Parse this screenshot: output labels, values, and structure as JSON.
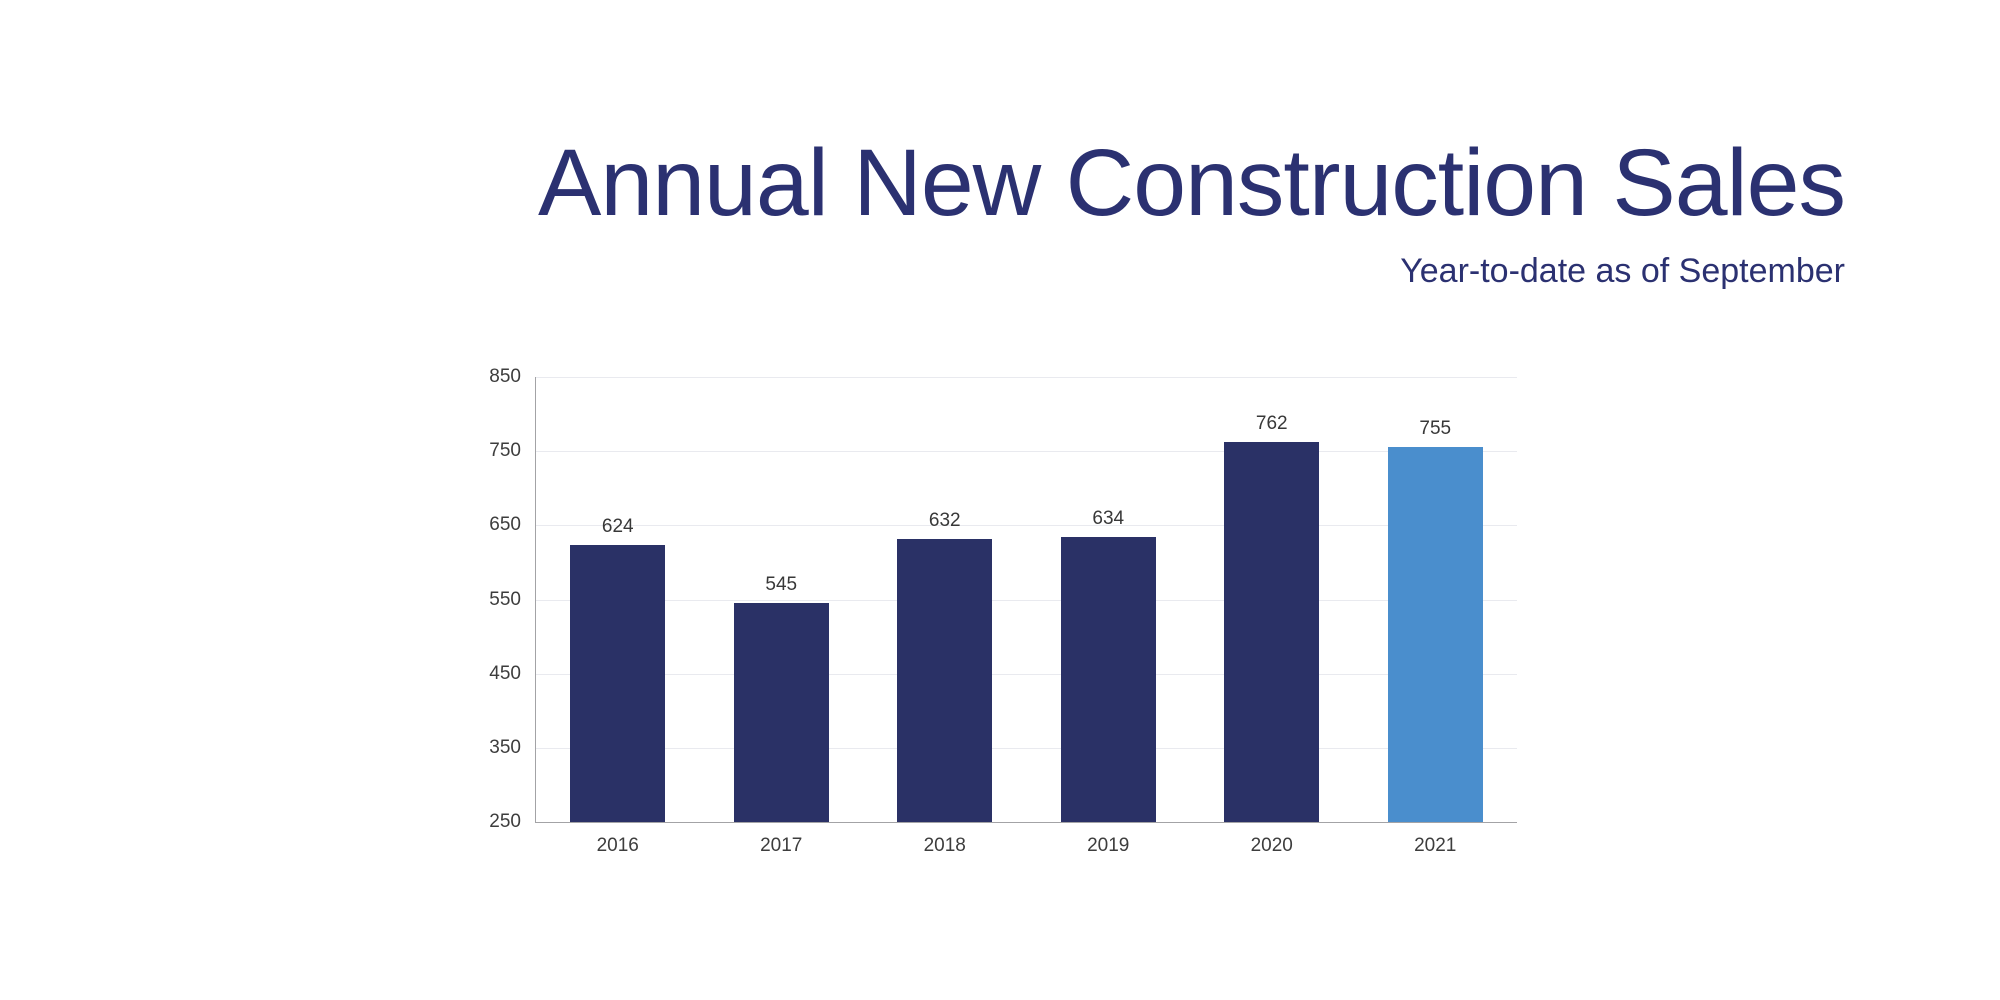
{
  "slide": {
    "background": "#ffffff"
  },
  "header": {
    "title": "Annual New Construction Sales",
    "subtitle": "Year-to-date as of September"
  },
  "chart_data": {
    "type": "bar",
    "title": "Annual New Construction Sales",
    "subtitle": "Year-to-date as of September",
    "categories": [
      "2016",
      "2017",
      "2018",
      "2019",
      "2020",
      "2021"
    ],
    "values": [
      624,
      545,
      632,
      634,
      762,
      755
    ],
    "data_labels": [
      "624",
      "545",
      "632",
      "634",
      "762",
      "755"
    ],
    "bar_colors": [
      "#2a3166",
      "#2a3166",
      "#2a3166",
      "#2a3166",
      "#2a3166",
      "#4a8ecd"
    ],
    "highlighted_category": "2021",
    "xlabel": "",
    "ylabel": "",
    "ylim": [
      250,
      850
    ],
    "yticks": [
      850,
      750,
      650,
      550,
      450,
      350,
      250
    ],
    "grid": "horizontal",
    "legend_position": "none",
    "data_labels_shown": true,
    "colors": {
      "bar_default": "#2a3166",
      "bar_highlight": "#4a8ecd",
      "title": "#2b3171",
      "gridline": "#e9eaef",
      "axis_line": "#a3a3a6",
      "tick_label": "#3d3d3d",
      "data_label": "#383838"
    }
  }
}
